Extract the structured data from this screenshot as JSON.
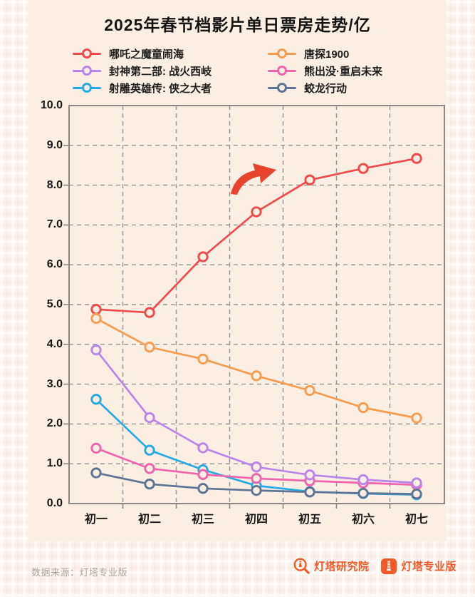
{
  "title": "2025年春节档影片单日票房走势/亿",
  "colors": {
    "brand_orange": "#F05A28",
    "panel_cream": "#FBEFE4",
    "pattern_base": "#FBF2EB",
    "ink": "#141414",
    "grid_gray": "#979390",
    "axis_gray": "#8A8785",
    "footer_gray": "#ABA49E",
    "arrow_red": "#E8432C"
  },
  "legend_columns": [
    [
      "哪吒之魔童闹海",
      "封神第二部: 战火西岐",
      "射雕英雄传: 侠之大者"
    ],
    [
      "唐探1900",
      "熊出没·重启未来",
      "蛟龙行动"
    ]
  ],
  "chart_data": {
    "type": "line",
    "title": "2025年春节档影片单日票房走势/亿",
    "categories": [
      "初一",
      "初二",
      "初三",
      "初四",
      "初五",
      "初六",
      "初七"
    ],
    "series": [
      {
        "name": "哪吒之魔童闹海",
        "color": "#F04A4A",
        "values": [
          4.88,
          4.8,
          6.2,
          7.33,
          8.13,
          8.42,
          8.67
        ]
      },
      {
        "name": "唐探1900",
        "color": "#F79B4F",
        "values": [
          4.65,
          3.93,
          3.63,
          3.21,
          2.84,
          2.41,
          2.15
        ]
      },
      {
        "name": "封神第二部: 战火西岐",
        "color": "#BA85E8",
        "values": [
          3.86,
          2.16,
          1.4,
          0.92,
          0.72,
          0.6,
          0.52
        ]
      },
      {
        "name": "熊出没·重启未来",
        "color": "#F263AE",
        "values": [
          1.39,
          0.88,
          0.73,
          0.63,
          0.57,
          0.52,
          0.47
        ]
      },
      {
        "name": "射雕英雄传: 侠之大者",
        "color": "#27AAE4",
        "values": [
          2.62,
          1.34,
          0.85,
          0.45,
          0.3,
          0.25,
          0.22
        ]
      },
      {
        "name": "蛟龙行动",
        "color": "#5F7493",
        "values": [
          0.77,
          0.49,
          0.38,
          0.33,
          0.29,
          0.26,
          0.24
        ]
      }
    ],
    "draw_order": [
      "哪吒之魔童闹海",
      "唐探1900",
      "射雕英雄传: 侠之大者",
      "熊出没·重启未来",
      "封神第二部: 战火西岐",
      "蛟龙行动"
    ],
    "ylim": [
      0,
      10
    ],
    "y_ticks": [
      "10.0",
      "9.0",
      "8.0",
      "7.0",
      "6.0",
      "5.0",
      "4.0",
      "3.0",
      "2.0",
      "1.0",
      "0.0"
    ],
    "grid": "dashed, horizontal at each 1.0 and vertical between categories",
    "legend_position": "top, two columns",
    "marker": "open-circle",
    "annotation": {
      "shape": "curved-arrow-up-right",
      "color": "#E8432C",
      "note": "highlights rise of 哪吒之魔童闹海 after 初二"
    }
  },
  "footer": {
    "source_label": "数据来源：灯塔专业版",
    "logos": [
      {
        "label": "灯塔研究院"
      },
      {
        "label": "灯塔专业版"
      }
    ]
  }
}
